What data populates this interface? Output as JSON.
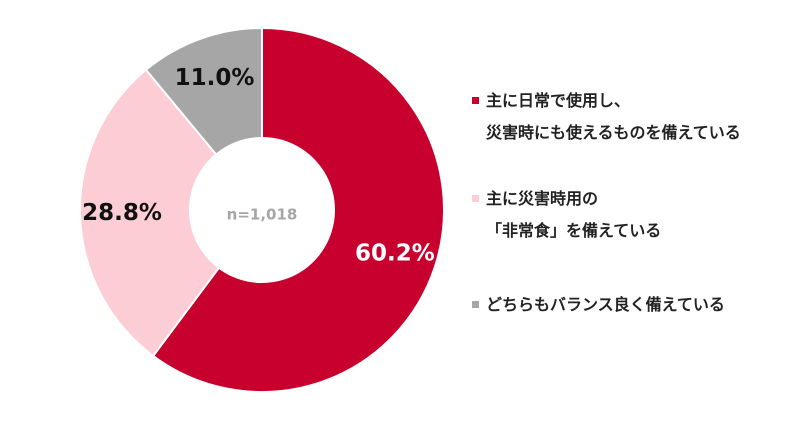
{
  "chart_data": {
    "type": "pie",
    "donut": true,
    "center_label": "n=1,018",
    "slices": [
      {
        "label": "主に日常で使用し、災害時にも使えるものを備えている",
        "value": 60.2,
        "value_label": "60.2%",
        "color": "#c8002e",
        "label_color": "#ffffff"
      },
      {
        "label": "主に災害時用の「非常食」を備えている",
        "value": 28.8,
        "value_label": "28.8%",
        "color": "#fccdd4",
        "label_color": "#111111"
      },
      {
        "label": "どちらもバランス良く備えている",
        "value": 11.0,
        "value_label": "11.0%",
        "color": "#a6a6a6",
        "label_color": "#111111"
      }
    ],
    "legend_position": "right",
    "legend": [
      {
        "lines": [
          "主に日常で使用し、",
          "災害時にも使えるものを備えている"
        ],
        "color": "#c8002e"
      },
      {
        "lines": [
          "主に災害時用の",
          "「非常食」を備えている"
        ],
        "color": "#fccdd4"
      },
      {
        "lines": [
          "どちらもバランス良く備えている"
        ],
        "color": "#a6a6a6"
      }
    ]
  }
}
